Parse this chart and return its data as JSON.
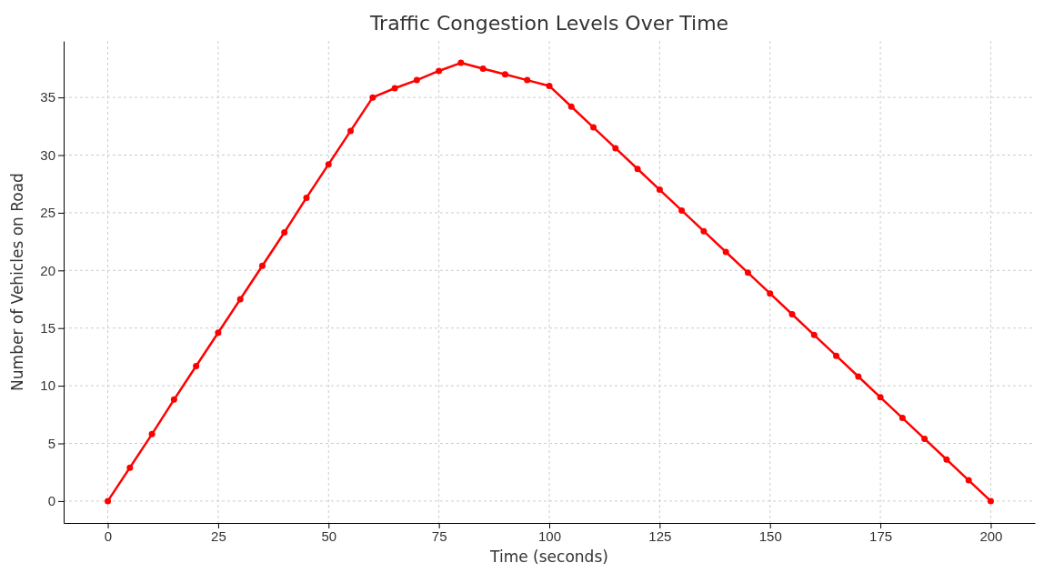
{
  "chart_data": {
    "type": "line",
    "title": "Traffic Congestion Levels Over Time",
    "xlabel": "Time (seconds)",
    "ylabel": "Number of Vehicles on Road",
    "x": [
      0,
      5,
      10,
      15,
      20,
      25,
      30,
      35,
      40,
      45,
      50,
      55,
      60,
      65,
      70,
      75,
      80,
      85,
      90,
      95,
      100,
      105,
      110,
      115,
      120,
      125,
      130,
      135,
      140,
      145,
      150,
      155,
      160,
      165,
      170,
      175,
      180,
      185,
      190,
      195,
      200
    ],
    "series": [
      {
        "color": "#ff0000",
        "values": [
          0,
          2.9,
          5.8,
          8.8,
          11.7,
          14.6,
          17.5,
          20.4,
          23.3,
          26.3,
          29.2,
          32.1,
          35,
          35.8,
          36.5,
          37.3,
          38,
          37.5,
          37,
          36.5,
          36,
          34.2,
          32.4,
          30.6,
          28.8,
          27,
          25.2,
          23.4,
          21.6,
          19.8,
          18,
          16.2,
          14.4,
          12.6,
          10.8,
          9,
          7.2,
          5.4,
          3.6,
          1.8,
          0
        ]
      }
    ],
    "xlim": [
      -10,
      210
    ],
    "ylim": [
      -1.9,
      39.9
    ],
    "xticks": [
      0,
      25,
      50,
      75,
      100,
      125,
      150,
      175,
      200
    ],
    "yticks": [
      0,
      5,
      10,
      15,
      20,
      25,
      30,
      35
    ],
    "grid": true,
    "marker": "circle",
    "line_style": "solid"
  }
}
